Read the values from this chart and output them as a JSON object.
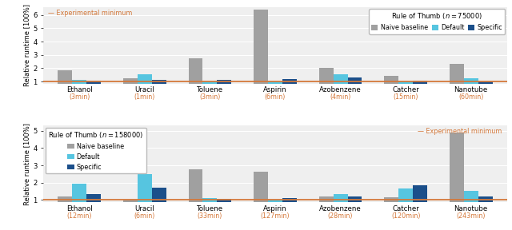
{
  "top": {
    "title": "Rule of Thumb ($n = 75000$)",
    "categories": [
      "Ethanol",
      "Uracil",
      "Toluene",
      "Aspirin",
      "Azobenzene",
      "Catcher",
      "Nanotube"
    ],
    "times": [
      "3min",
      "1min",
      "3min",
      "6min",
      "4min",
      "15min",
      "60min"
    ],
    "naive": [
      1.85,
      1.25,
      2.75,
      6.4,
      2.05,
      1.45,
      2.3
    ],
    "default": [
      1.1,
      1.55,
      1.0,
      1.0,
      1.55,
      1.0,
      1.25
    ],
    "specific": [
      1.05,
      1.1,
      1.15,
      1.2,
      1.3,
      1.05,
      1.0
    ],
    "ylim": [
      0.85,
      6.6
    ],
    "yticks": [
      1,
      2,
      3,
      4,
      5,
      6
    ]
  },
  "bottom": {
    "title": "Rule of Thumb ($n = 158000$)",
    "categories": [
      "Ethanol",
      "Uracil",
      "Toluene",
      "Aspirin",
      "Azobenzene",
      "Catcher",
      "Nanotube"
    ],
    "times": [
      "12min",
      "6min",
      "33min",
      "127min",
      "28min",
      "120min",
      "243min"
    ],
    "naive": [
      1.2,
      1.0,
      2.75,
      2.65,
      1.2,
      1.15,
      4.9
    ],
    "default": [
      1.95,
      2.5,
      1.1,
      1.0,
      1.35,
      1.65,
      1.5
    ],
    "specific": [
      1.35,
      1.7,
      1.05,
      1.1,
      1.2,
      1.85,
      1.2
    ],
    "ylim": [
      0.85,
      5.3
    ],
    "yticks": [
      1,
      2,
      3,
      4,
      5
    ]
  },
  "colors": {
    "naive": "#a0a0a0",
    "default": "#56c5e0",
    "specific": "#1b4f8a"
  },
  "exp_min_color": "#d4783a",
  "exp_min_value": 1.0,
  "bar_width": 0.22,
  "ylabel": "Relative runtime [100%]",
  "time_color": "#d4783a",
  "background_color": "#efefef"
}
